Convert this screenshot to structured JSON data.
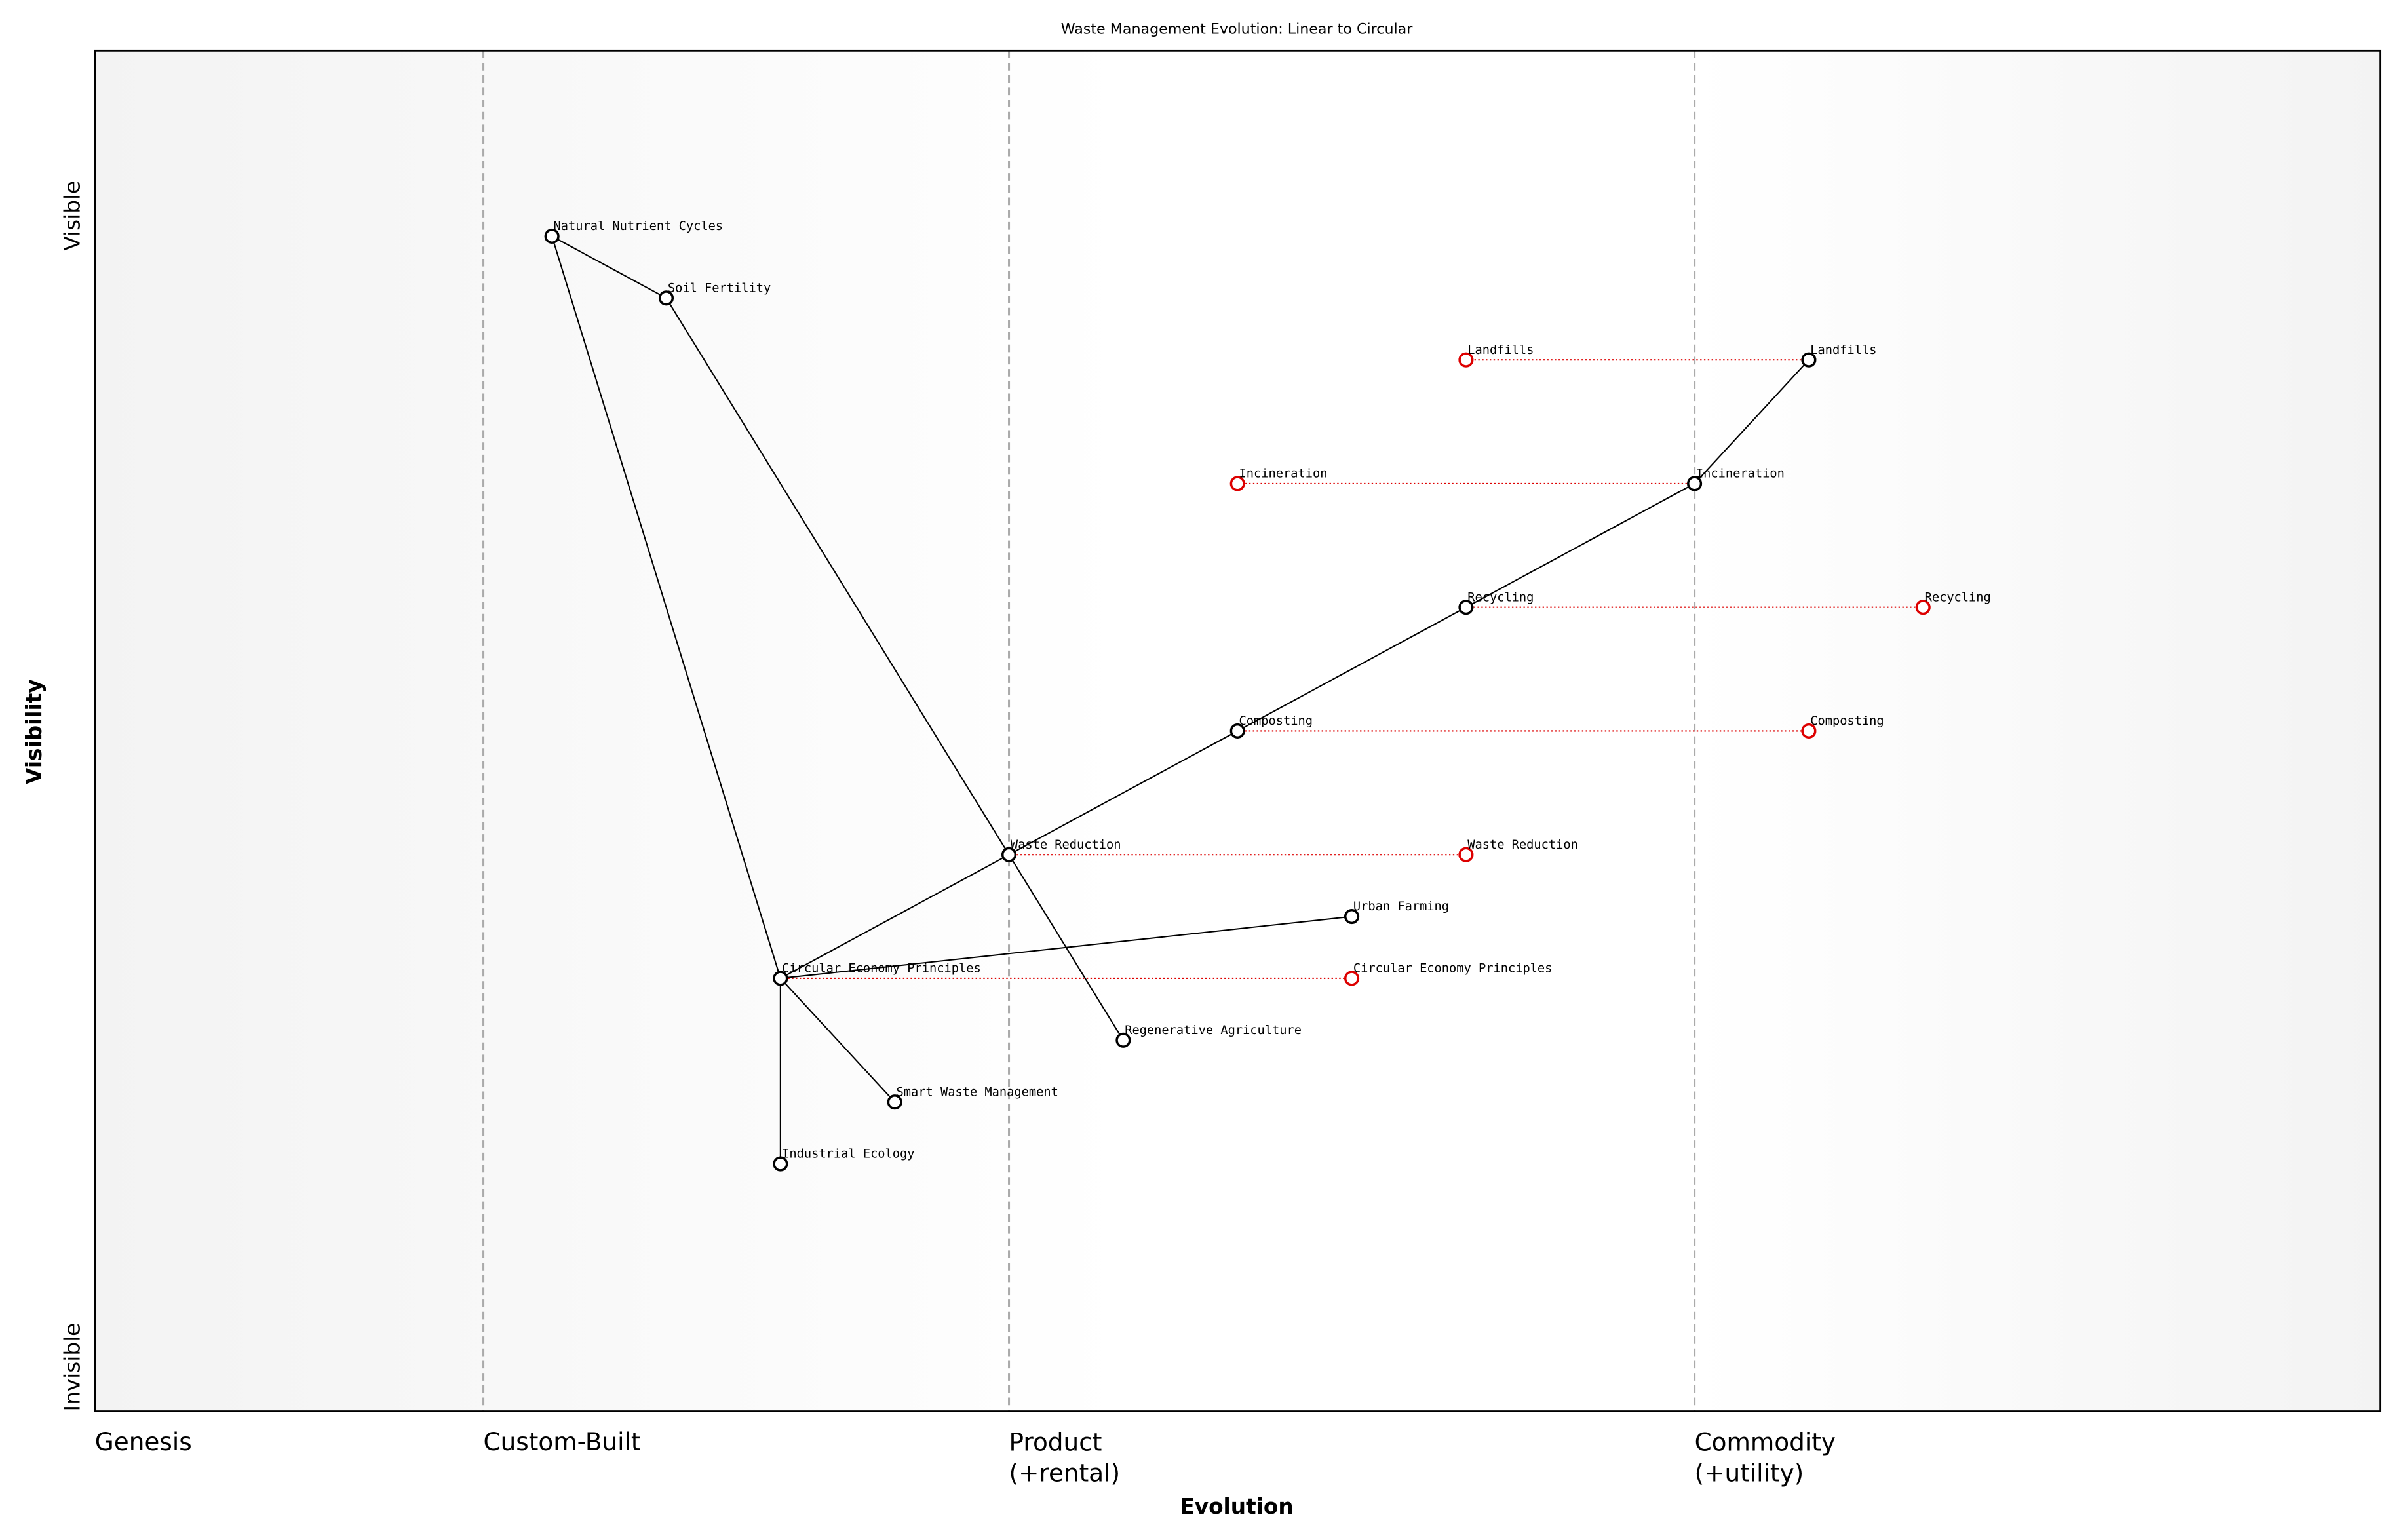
{
  "chart_data": {
    "type": "wardley",
    "title": "Waste Management Evolution: Linear to Circular",
    "x_label": "Evolution",
    "y_label": "Visibility",
    "y_top_label": "Visible",
    "y_bottom_label": "Invisible",
    "xlim": [
      0,
      1
    ],
    "ylim": [
      -0.05,
      1.05
    ],
    "xticks": [
      {
        "value": 0,
        "label": "Genesis"
      },
      {
        "value": 0.17,
        "label": "Custom-Built"
      },
      {
        "value": 0.4,
        "label": "Product\n(+rental)"
      },
      {
        "value": 0.7,
        "label": "Commodity\n(+utility)"
      }
    ],
    "component_color": "#000000",
    "evolve_color": "#dd0000",
    "components": [
      {
        "name": "Natural Nutrient Cycles",
        "x": 0.2,
        "y": 0.9
      },
      {
        "name": "Soil Fertility",
        "x": 0.25,
        "y": 0.85
      },
      {
        "name": "Landfills",
        "x": 0.75,
        "y": 0.8,
        "evolve": 0.6
      },
      {
        "name": "Incineration",
        "x": 0.7,
        "y": 0.7,
        "evolve": 0.5
      },
      {
        "name": "Recycling",
        "x": 0.6,
        "y": 0.6,
        "evolve": 0.8
      },
      {
        "name": "Composting",
        "x": 0.5,
        "y": 0.5,
        "evolve": 0.75
      },
      {
        "name": "Waste Reduction",
        "x": 0.4,
        "y": 0.4,
        "evolve": 0.6
      },
      {
        "name": "Urban Farming",
        "x": 0.55,
        "y": 0.35
      },
      {
        "name": "Circular Economy Principles",
        "x": 0.3,
        "y": 0.3,
        "evolve": 0.55
      },
      {
        "name": "Regenerative Agriculture",
        "x": 0.45,
        "y": 0.25
      },
      {
        "name": "Smart Waste Management",
        "x": 0.35,
        "y": 0.2
      },
      {
        "name": "Industrial Ecology",
        "x": 0.3,
        "y": 0.15
      }
    ],
    "links": [
      [
        "Natural Nutrient Cycles",
        "Soil Fertility"
      ],
      [
        "Natural Nutrient Cycles",
        "Circular Economy Principles"
      ],
      [
        "Soil Fertility",
        "Regenerative Agriculture"
      ],
      [
        "Circular Economy Principles",
        "Waste Reduction"
      ],
      [
        "Waste Reduction",
        "Composting"
      ],
      [
        "Composting",
        "Recycling"
      ],
      [
        "Recycling",
        "Incineration"
      ],
      [
        "Incineration",
        "Landfills"
      ],
      [
        "Circular Economy Principles",
        "Urban Farming"
      ],
      [
        "Circular Economy Principles",
        "Smart Waste Management"
      ],
      [
        "Circular Economy Principles",
        "Industrial Ecology"
      ]
    ]
  }
}
